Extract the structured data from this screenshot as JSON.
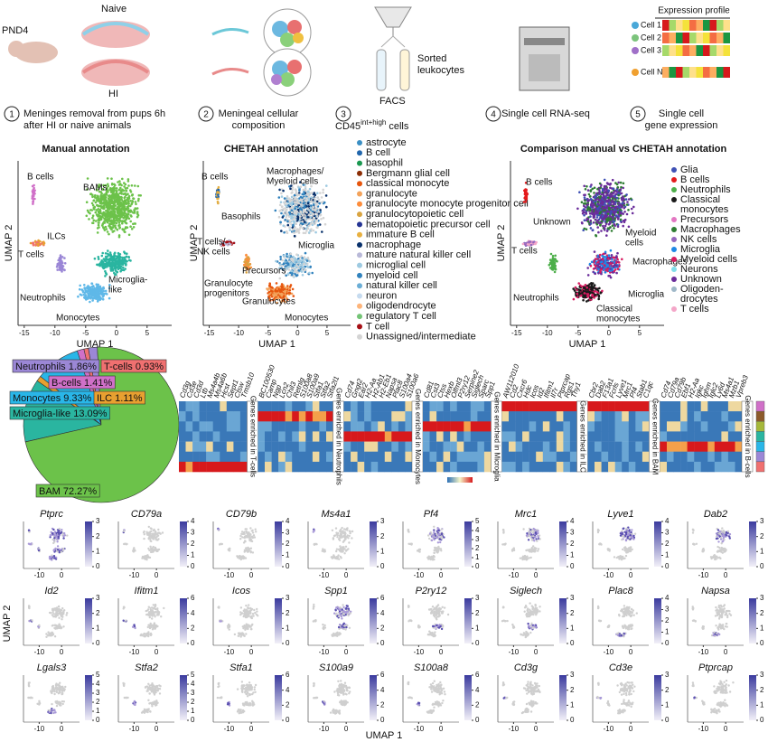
{
  "workflow": {
    "pnd": "PND4",
    "naive": "Naive",
    "hi": "HI",
    "facs": "FACS",
    "sorted": [
      "Sorted",
      "leukocytes"
    ],
    "cd45": "CD45",
    "cd45_sup": "int+high",
    "cells": "cells",
    "expression_profile": "Expression profile",
    "cell_rows": [
      "Cell 1",
      "Cell 2",
      "Cell 3",
      "Cell N"
    ],
    "steps": [
      {
        "number": "1",
        "lines": [
          "Meninges removal from pups 6h",
          "after HI or naive animals"
        ]
      },
      {
        "number": "2",
        "lines": [
          "Meningeal cellular",
          "composition"
        ]
      },
      {
        "number": "3"
      },
      {
        "number": "4",
        "lines": [
          "Single cell RNA-seq"
        ]
      },
      {
        "number": "5",
        "lines": [
          "Single cell",
          "gene expression"
        ]
      }
    ]
  },
  "umap_axes": {
    "x_label": "UMAP 1",
    "y_label": "UMAP 2",
    "xticks": [
      -15,
      -10,
      -5,
      0,
      5
    ]
  },
  "umaps": [
    {
      "title": "Manual annotation",
      "labels": [
        [
          "B cells"
        ],
        [
          "BAMs"
        ],
        [
          "ILCs"
        ],
        [
          "T cells"
        ],
        [
          "Neutrophils"
        ],
        [
          "Microglia-",
          "like"
        ],
        [
          "Monocytes"
        ]
      ]
    },
    {
      "title": "CHETAH annotation",
      "labels": [
        [
          "B cells"
        ],
        [
          "Macrophages/",
          "Myeloid cells"
        ],
        [
          "Basophils"
        ],
        [
          "T cells/",
          "NK cells"
        ],
        [
          "Microglia"
        ],
        [
          "Precursors"
        ],
        [
          "Granulocyte",
          "progenitors"
        ],
        [
          "Granulocytes"
        ],
        [
          "Monocytes"
        ]
      ],
      "legend": [
        {
          "name": "astrocyte",
          "color": "#3a8fc4"
        },
        {
          "name": "B cell",
          "color": "#2166ac"
        },
        {
          "name": "basophil",
          "color": "#1a9850"
        },
        {
          "name": "Bergmann glial cell",
          "color": "#8c2d04"
        },
        {
          "name": "classical monocyte",
          "color": "#e6550d"
        },
        {
          "name": "granulocyte",
          "color": "#f3a35c"
        },
        {
          "name": "granulocyte monocyte progenitor cell",
          "color": "#fd8d3c"
        },
        {
          "name": "granulocytopoietic cell",
          "color": "#d9a441"
        },
        {
          "name": "hematopoietic precursor cell",
          "color": "#253494"
        },
        {
          "name": "immature B cell",
          "color": "#e8b040"
        },
        {
          "name": "macrophage",
          "color": "#08306b"
        },
        {
          "name": "mature natural killer cell",
          "color": "#b9b9d8"
        },
        {
          "name": "microglial cell",
          "color": "#9ecae1"
        },
        {
          "name": "myeloid cell",
          "color": "#3182bd"
        },
        {
          "name": "natural killer cell",
          "color": "#6baed6"
        },
        {
          "name": "neuron",
          "color": "#c6dbef"
        },
        {
          "name": "oligodendrocyte",
          "color": "#fdb47a"
        },
        {
          "name": "regulatory T cell",
          "color": "#74c476"
        },
        {
          "name": "T cell",
          "color": "#a50f15"
        },
        {
          "name": "Unassigned/intermediate",
          "color": "#d4d4d4"
        }
      ]
    },
    {
      "title": "Comparison manual vs CHETAH annotation",
      "labels": [
        [
          "B cells"
        ],
        [
          "Unknown"
        ],
        [
          "T cells"
        ],
        [
          "Myeloid",
          "cells"
        ],
        [
          "Macrophages"
        ],
        [
          "Neutrophils"
        ],
        [
          "Microglia"
        ],
        [
          "Classical",
          "monocytes"
        ]
      ],
      "legend": [
        {
          "name": [
            "Glia"
          ],
          "color": "#3f51b5"
        },
        {
          "name": [
            "B cells"
          ],
          "color": "#e41a1c"
        },
        {
          "name": [
            "Neutrophils"
          ],
          "color": "#4daf4a"
        },
        {
          "name": [
            "Classical",
            "monocytes"
          ],
          "color": "#1a1a1a"
        },
        {
          "name": [
            "Precursors"
          ],
          "color": "#e377c2"
        },
        {
          "name": [
            "Macrophages"
          ],
          "color": "#2e7d32"
        },
        {
          "name": [
            "NK cells"
          ],
          "color": "#9467bd"
        },
        {
          "name": [
            "Microglia"
          ],
          "color": "#1e88e5"
        },
        {
          "name": [
            "Myeloid cells"
          ],
          "color": "#d81b60"
        },
        {
          "name": [
            "Neurons"
          ],
          "color": "#80deea"
        },
        {
          "name": [
            "Unknown"
          ],
          "color": "#6a2c9a"
        },
        {
          "name": [
            "Oligoden-",
            "drocytes"
          ],
          "color": "#9fb8c8"
        },
        {
          "name": [
            "T cells"
          ],
          "color": "#f4a6c8"
        }
      ]
    }
  ],
  "chart_data": {
    "type": "pie",
    "values": [
      1.86,
      0.93,
      1.41,
      9.33,
      1.11,
      13.09,
      72.27
    ],
    "value_labels": [
      "Neutrophils 1.86%",
      "T-cells 0.93%",
      "B-cells 1.41%",
      "Monocytes 9.33%",
      "ILC 1.11%",
      "Microglia-like 13.09%",
      "BAM 72.27%"
    ],
    "colors": [
      "#9b87d6",
      "#f07070",
      "#d070c8",
      "#29b6e8",
      "#e8a030",
      "#2ab5a0",
      "#6cc24a"
    ]
  },
  "heatmap": {
    "groups": [
      {
        "label": "Genes enriched in T-cells",
        "genes": [
          "Cd3g",
          "Cd3e",
          "Cd3d",
          "Ltb",
          "Ms4a4b",
          "Ms4a6b",
          "Hcst",
          "Sept1",
          "Ctsw",
          "Tmsb10"
        ]
      },
      {
        "label": "Genes enriched in Neutrophils",
        "genes": [
          "BC100530",
          "Camp",
          "Ngp",
          "Lcn2",
          "Chil3",
          "Retnlg",
          "S100a8",
          "S100a9",
          "Stfa1",
          "Stfa2",
          "Stfa2l1"
        ]
      },
      {
        "label": "Genes enriched in Monocytes",
        "genes": [
          "Cd74",
          "Gngt2",
          "Ear2",
          "H2-Aa",
          "H2-Ab1",
          "H2-Eb1",
          "Napsa",
          "Plac8",
          "S100a4",
          "S100a6"
        ]
      },
      {
        "label": "Genes enriched in Microglia",
        "genes": [
          "Cd81",
          "Cst3",
          "Ctss",
          "Hexb",
          "Olfml3",
          "P2ry12",
          "Serpine2",
          "Siglech",
          "Sparc",
          "Spp1"
        ]
      },
      {
        "label": "Genes enriched in ILC",
        "genes": [
          "AW112010",
          "Cd2",
          "Cxcr6",
          "Hdc",
          "Icos",
          "Id2",
          "Ifitm1",
          "Il7r",
          "Ptprcap",
          "Rgs1",
          "Thy1"
        ]
      },
      {
        "label": "Genes enriched in BAM",
        "genes": [
          "Cbr2",
          "Dab2",
          "F13a1",
          "Fcrls",
          "Lyve1",
          "Mrc1",
          "Pf4",
          "Stab1",
          "C1qc"
        ]
      },
      {
        "label": "Genes enriched in B-cells",
        "genes": [
          "Cd74",
          "Cd79a",
          "Cd79b",
          "Ebf1",
          "H2-Aa",
          "Igkc",
          "Ighm",
          "Iglc2",
          "Ly6d",
          "Ms4a1",
          "Mzb1",
          "Vpreb3"
        ]
      }
    ],
    "row_colors": [
      "#d070c8",
      "#8c5a2b",
      "#a6b83a",
      "#2ab5a0",
      "#29b6e8",
      "#9b87d6",
      "#f07070"
    ]
  },
  "features": {
    "x_label": "UMAP 1",
    "y_label": "UMAP 2",
    "xticks": [
      -10,
      0
    ],
    "genes": [
      {
        "name": "Ptprc",
        "ticks": [
          0,
          1,
          2,
          3
        ]
      },
      {
        "name": "CD79a",
        "ticks": [
          0,
          1,
          2,
          3,
          4
        ]
      },
      {
        "name": "CD79b",
        "ticks": [
          0,
          1,
          2,
          3,
          4
        ]
      },
      {
        "name": "Ms4a1",
        "ticks": [
          0,
          1,
          2,
          3
        ]
      },
      {
        "name": "Pf4",
        "ticks": [
          0,
          1,
          2,
          3,
          4,
          5
        ]
      },
      {
        "name": "Mrc1",
        "ticks": [
          0,
          1,
          2,
          3,
          4
        ]
      },
      {
        "name": "Lyve1",
        "ticks": [
          0,
          1,
          2,
          3,
          4
        ]
      },
      {
        "name": "Dab2",
        "ticks": [
          0,
          1,
          2,
          3
        ]
      },
      {
        "name": "Id2",
        "ticks": [
          0,
          1,
          2,
          3
        ]
      },
      {
        "name": "Ifitm1",
        "ticks": [
          0,
          2,
          4,
          6
        ]
      },
      {
        "name": "Icos",
        "ticks": [
          0,
          1,
          2,
          3
        ]
      },
      {
        "name": "Spp1",
        "ticks": [
          0,
          2,
          4,
          6
        ]
      },
      {
        "name": "P2ry12",
        "ticks": [
          0,
          1,
          2,
          3
        ]
      },
      {
        "name": "Siglech",
        "ticks": [
          0,
          1,
          2,
          3
        ]
      },
      {
        "name": "Plac8",
        "ticks": [
          0,
          1,
          2,
          3,
          4
        ]
      },
      {
        "name": "Napsa",
        "ticks": [
          0,
          1,
          2,
          3
        ]
      },
      {
        "name": "Lgals3",
        "ticks": [
          0,
          1,
          2,
          3,
          4,
          5
        ]
      },
      {
        "name": "Stfa2",
        "ticks": [
          0,
          1,
          2,
          3,
          4,
          5
        ]
      },
      {
        "name": "Stfa1",
        "ticks": [
          0,
          2,
          4,
          6
        ]
      },
      {
        "name": "S100a9",
        "ticks": [
          0,
          2,
          4,
          6
        ]
      },
      {
        "name": "S100a8",
        "ticks": [
          0,
          2,
          4,
          6
        ]
      },
      {
        "name": "Cd3g",
        "ticks": [
          0,
          1,
          2,
          3
        ]
      },
      {
        "name": "Cd3e",
        "ticks": [
          0,
          1,
          2,
          3
        ]
      },
      {
        "name": "Ptprcap",
        "ticks": [
          0,
          1,
          2,
          3
        ]
      }
    ]
  }
}
